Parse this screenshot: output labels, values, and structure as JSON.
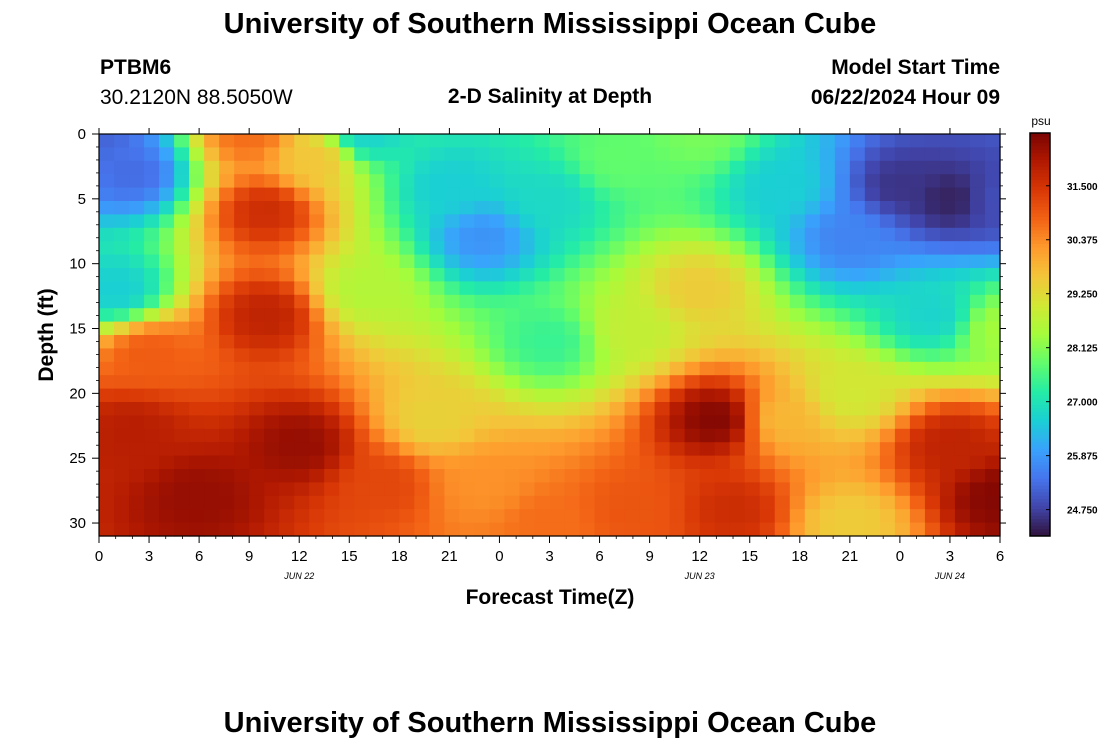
{
  "header": {
    "title": "University of Southern Mississippi Ocean Cube",
    "station_id": "PTBM6",
    "coords": "30.2120N  88.5050W",
    "subtitle": "2-D Salinity at Depth",
    "model_label": "Model Start Time",
    "model_time": "06/22/2024 Hour 09",
    "footer_title": "University of Southern Mississippi Ocean Cube"
  },
  "chart_data": {
    "type": "heatmap",
    "title": "2-D Salinity at Depth",
    "xlabel": "Forecast Time(Z)",
    "ylabel": "Depth (ft)",
    "x_range_hours": [
      0,
      54
    ],
    "y_range_ft": [
      0,
      31
    ],
    "x_ticks": [
      "0",
      "3",
      "6",
      "9",
      "12",
      "15",
      "18",
      "21",
      "0",
      "3",
      "6",
      "9",
      "12",
      "15",
      "18",
      "21",
      "0",
      "3",
      "6"
    ],
    "date_labels": [
      {
        "label": "JUN 22",
        "hour": 12
      },
      {
        "label": "JUN 23",
        "hour": 36
      },
      {
        "label": "JUN 24",
        "hour": 51
      }
    ],
    "y_ticks": [
      "0",
      "5",
      "10",
      "15",
      "20",
      "25",
      "30"
    ],
    "colorbar": {
      "unit": "psu",
      "min": 24.2,
      "max": 32.6,
      "labels": [
        "31.500",
        "30.375",
        "29.250",
        "28.125",
        "27.000",
        "25.875",
        "24.750"
      ],
      "colors": [
        "#30123b",
        "#4145ab",
        "#4675ed",
        "#39a2fc",
        "#1bcfd4",
        "#24eca6",
        "#61fc6c",
        "#a4fc3b",
        "#d1e834",
        "#f3c63a",
        "#fe9b2d",
        "#f36315",
        "#d93806",
        "#b11901",
        "#7a0403"
      ]
    },
    "anchors": [
      {
        "hour": 0,
        "depth": 0,
        "psu": 25.2
      },
      {
        "hour": 2,
        "depth": 3,
        "psu": 25.3
      },
      {
        "hour": 1,
        "depth": 12,
        "psu": 26.6
      },
      {
        "hour": 3,
        "depth": 17,
        "psu": 30.9
      },
      {
        "hour": 2,
        "depth": 23,
        "psu": 31.9
      },
      {
        "hour": 6,
        "depth": 28,
        "psu": 32.3
      },
      {
        "hour": 9,
        "depth": 0,
        "psu": 30.7
      },
      {
        "hour": 10,
        "depth": 6,
        "psu": 31.6
      },
      {
        "hour": 10,
        "depth": 14,
        "psu": 31.8
      },
      {
        "hour": 12,
        "depth": 24,
        "psu": 32.3
      },
      {
        "hour": 13,
        "depth": 2,
        "psu": 29.6
      },
      {
        "hour": 16,
        "depth": 0,
        "psu": 26.7
      },
      {
        "hour": 16,
        "depth": 12,
        "psu": 28.6
      },
      {
        "hour": 17,
        "depth": 27,
        "psu": 31.2
      },
      {
        "hour": 20,
        "depth": 22,
        "psu": 29.4
      },
      {
        "hour": 21,
        "depth": 4,
        "psu": 26.6
      },
      {
        "hour": 23,
        "depth": 8,
        "psu": 25.8
      },
      {
        "hour": 23,
        "depth": 27,
        "psu": 30.3
      },
      {
        "hour": 27,
        "depth": 5,
        "psu": 26.8
      },
      {
        "hour": 27,
        "depth": 16,
        "psu": 27.4
      },
      {
        "hour": 27,
        "depth": 30,
        "psu": 30.7
      },
      {
        "hour": 31,
        "depth": 2,
        "psu": 27.8
      },
      {
        "hour": 32,
        "depth": 15,
        "psu": 28.8
      },
      {
        "hour": 32,
        "depth": 29,
        "psu": 31.0
      },
      {
        "hour": 36,
        "depth": 0,
        "psu": 28.0
      },
      {
        "hour": 36,
        "depth": 12,
        "psu": 29.5
      },
      {
        "hour": 37,
        "depth": 22,
        "psu": 32.5
      },
      {
        "hour": 38,
        "depth": 29,
        "psu": 31.6
      },
      {
        "hour": 41,
        "depth": 4,
        "psu": 26.6
      },
      {
        "hour": 41,
        "depth": 22,
        "psu": 29.8
      },
      {
        "hour": 45,
        "depth": 8,
        "psu": 25.6
      },
      {
        "hour": 45,
        "depth": 20,
        "psu": 29.0
      },
      {
        "hour": 45,
        "depth": 30,
        "psu": 29.5
      },
      {
        "hour": 48,
        "depth": 4,
        "psu": 24.6
      },
      {
        "hour": 51,
        "depth": 5,
        "psu": 24.4
      },
      {
        "hour": 50,
        "depth": 14,
        "psu": 26.7
      },
      {
        "hour": 51,
        "depth": 24,
        "psu": 31.8
      },
      {
        "hour": 54,
        "depth": 5,
        "psu": 24.9
      },
      {
        "hour": 54,
        "depth": 15,
        "psu": 28.4
      },
      {
        "hour": 54,
        "depth": 28,
        "psu": 32.5
      }
    ]
  }
}
